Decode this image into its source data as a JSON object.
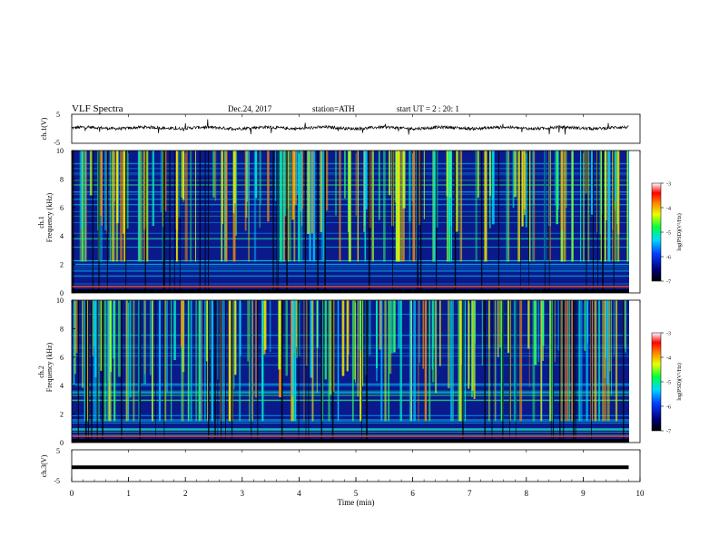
{
  "header": {
    "title": "VLF  Spectra",
    "date": "Dec.24, 2017",
    "station": "station=ATH",
    "start_ut": "start  UT  =   2  : 20: 1"
  },
  "chart_data": [
    {
      "type": "line",
      "ylabel": "ch.1(V)",
      "ylim": [
        -5,
        5
      ],
      "yticks": [
        "5",
        "-5"
      ],
      "x_range_min": [
        0,
        9.8
      ],
      "series": [
        {
          "description": "noisy waveform around 0 V",
          "level_v": 0.3,
          "spread_v": 1.0
        }
      ]
    },
    {
      "type": "heatmap",
      "ylabel_top": "ch.1",
      "ylabel": "Frequency  (kHz)",
      "ylim": [
        0,
        10
      ],
      "yticks": [
        "0",
        "2",
        "4",
        "6",
        "8",
        "10"
      ],
      "colorbar": {
        "label": "log(PSD)(V²/Hz)",
        "range": [
          -7,
          -3
        ],
        "ticks": [
          "-3",
          "-4",
          "-5",
          "-6",
          "-7"
        ]
      }
    },
    {
      "type": "heatmap",
      "ylabel_top": "ch.2",
      "ylabel": "Frequency  (kHz)",
      "ylim": [
        0,
        10
      ],
      "yticks": [
        "0",
        "2",
        "4",
        "6",
        "8",
        "10"
      ],
      "colorbar": {
        "label": "log(PSD)(V²/Hz)",
        "range": [
          -7,
          -3
        ],
        "ticks": [
          "-3",
          "-4",
          "-5",
          "-6",
          "-7"
        ]
      }
    },
    {
      "type": "line",
      "ylabel": "ch.3(V)",
      "ylim": [
        -5,
        5
      ],
      "yticks": [
        "5",
        "-5"
      ],
      "x_range_min": [
        0,
        9.8
      ],
      "series": [
        {
          "description": "flat thick line",
          "level_v": -0.5
        }
      ]
    }
  ],
  "xaxis": {
    "label": "Time  (min)",
    "range": [
      0,
      10
    ],
    "ticks": [
      "0",
      "1",
      "2",
      "3",
      "4",
      "5",
      "6",
      "7",
      "8",
      "9",
      "10"
    ]
  },
  "colors": {
    "spectrogram_background": "#0a1a8c",
    "trace": "#000000"
  }
}
